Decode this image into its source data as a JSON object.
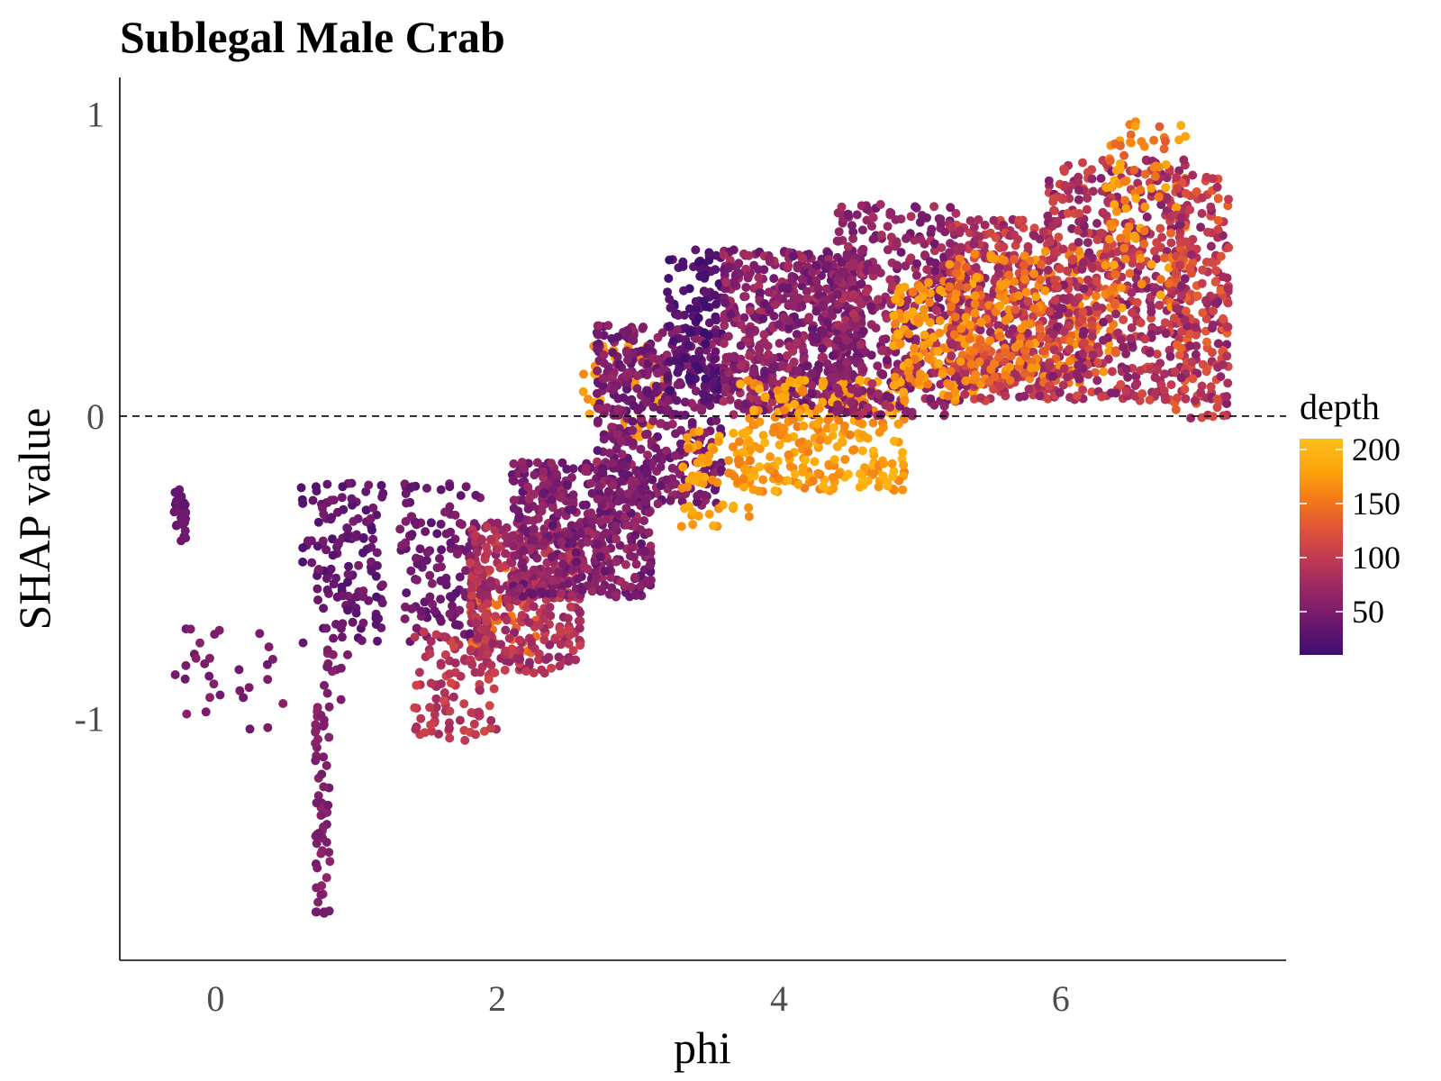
{
  "chart_data": {
    "type": "scatter",
    "title": "Sublegal Male Crab",
    "xlabel": "phi",
    "ylabel": "SHAP value",
    "xlim": [
      -0.68,
      7.6
    ],
    "ylim": [
      -1.8,
      1.12
    ],
    "x_ticks": [
      0,
      2,
      4,
      6
    ],
    "x_tick_labels": [
      "0",
      "2",
      "4",
      "6"
    ],
    "y_ticks": [
      -1,
      0,
      1
    ],
    "y_tick_labels": [
      "-1",
      "0",
      "1"
    ],
    "reference_line": {
      "y": 0,
      "style": "dashed"
    },
    "grid": false,
    "color_variable": "depth",
    "legend": {
      "title": "depth",
      "placement": "right",
      "min": 10,
      "max": 210,
      "ticks": [
        50,
        100,
        150,
        200
      ],
      "tick_labels": [
        "50",
        "100",
        "150",
        "200"
      ],
      "colormap": [
        "#3b0f70",
        "#6a176e",
        "#932667",
        "#bc3754",
        "#dd513a",
        "#f37819",
        "#fca50a",
        "#fcbf1a"
      ]
    },
    "point_groups": [
      {
        "x": [
          -0.3,
          -0.2
        ],
        "y": [
          -0.42,
          -0.23
        ],
        "depth": [
          30,
          45
        ],
        "n": 30
      },
      {
        "x": [
          -0.3,
          0.5
        ],
        "y": [
          -1.08,
          -0.7
        ],
        "depth": [
          40,
          60
        ],
        "n": 30
      },
      {
        "x": [
          0.6,
          1.2
        ],
        "y": [
          -0.75,
          -0.22
        ],
        "depth": [
          20,
          50
        ],
        "n": 140
      },
      {
        "x": [
          0.7,
          0.82
        ],
        "y": [
          -1.67,
          -0.95
        ],
        "depth": [
          45,
          65
        ],
        "n": 60
      },
      {
        "x": [
          0.75,
          0.95
        ],
        "y": [
          -0.95,
          -0.75
        ],
        "depth": [
          45,
          65
        ],
        "n": 12
      },
      {
        "x": [
          1.3,
          1.9
        ],
        "y": [
          -0.75,
          -0.22
        ],
        "depth": [
          25,
          55
        ],
        "n": 130
      },
      {
        "x": [
          1.4,
          2.0
        ],
        "y": [
          -1.08,
          -0.7
        ],
        "depth": [
          75,
          115
        ],
        "n": 100
      },
      {
        "x": [
          1.8,
          2.3
        ],
        "y": [
          -0.82,
          -0.5
        ],
        "depth": [
          130,
          155
        ],
        "n": 50
      },
      {
        "x": [
          1.8,
          2.6
        ],
        "y": [
          -0.85,
          -0.35
        ],
        "depth": [
          60,
          110
        ],
        "n": 350
      },
      {
        "x": [
          2.1,
          3.1
        ],
        "y": [
          -0.6,
          -0.15
        ],
        "depth": [
          30,
          80
        ],
        "n": 500
      },
      {
        "x": [
          2.6,
          3.2
        ],
        "y": [
          -0.1,
          0.25
        ],
        "depth": [
          160,
          190
        ],
        "n": 60
      },
      {
        "x": [
          2.7,
          3.6
        ],
        "y": [
          -0.3,
          0.3
        ],
        "depth": [
          30,
          70
        ],
        "n": 450
      },
      {
        "x": [
          3.3,
          3.8
        ],
        "y": [
          -0.37,
          -0.05
        ],
        "depth": [
          160,
          195
        ],
        "n": 60
      },
      {
        "x": [
          3.2,
          3.6
        ],
        "y": [
          0.05,
          0.55
        ],
        "depth": [
          10,
          35
        ],
        "n": 120
      },
      {
        "x": [
          3.6,
          4.6
        ],
        "y": [
          0.0,
          0.55
        ],
        "depth": [
          35,
          85
        ],
        "n": 650
      },
      {
        "x": [
          3.7,
          4.9
        ],
        "y": [
          -0.25,
          0.12
        ],
        "depth": [
          155,
          200
        ],
        "n": 280
      },
      {
        "x": [
          4.4,
          5.3
        ],
        "y": [
          0.0,
          0.7
        ],
        "depth": [
          40,
          90
        ],
        "n": 400
      },
      {
        "x": [
          4.8,
          5.4
        ],
        "y": [
          0.05,
          0.45
        ],
        "depth": [
          150,
          190
        ],
        "n": 150
      },
      {
        "x": [
          5.2,
          6.0
        ],
        "y": [
          0.05,
          0.65
        ],
        "depth": [
          60,
          120
        ],
        "n": 400
      },
      {
        "x": [
          5.2,
          6.4
        ],
        "y": [
          0.1,
          0.55
        ],
        "depth": [
          130,
          180
        ],
        "n": 250
      },
      {
        "x": [
          5.9,
          6.9
        ],
        "y": [
          0.05,
          0.85
        ],
        "depth": [
          50,
          120
        ],
        "n": 500
      },
      {
        "x": [
          6.3,
          6.9
        ],
        "y": [
          0.35,
          1.0
        ],
        "depth": [
          130,
          190
        ],
        "n": 110
      },
      {
        "x": [
          6.8,
          7.2
        ],
        "y": [
          -0.02,
          0.8
        ],
        "depth": [
          55,
          140
        ],
        "n": 220
      }
    ]
  }
}
